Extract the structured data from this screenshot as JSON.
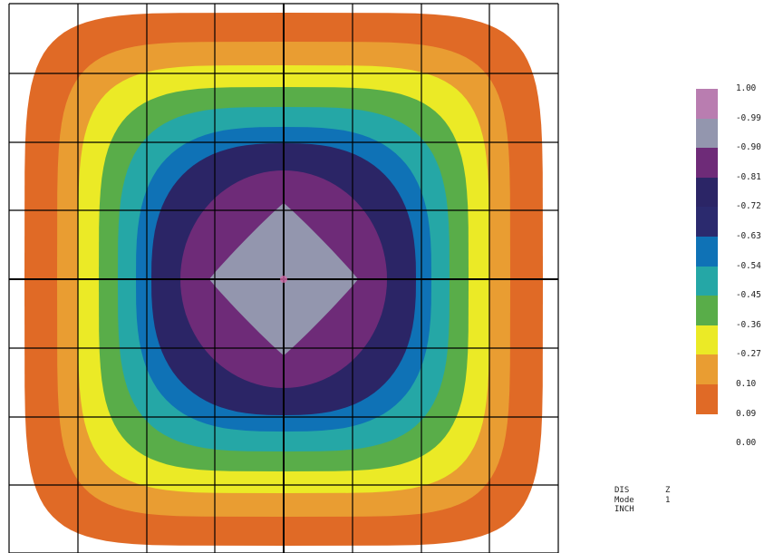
{
  "legend": {
    "labels": [
      "1.00",
      "-0.99",
      "-0.90",
      "-0.81",
      "-0.72",
      "-0.63",
      "-0.54",
      "-0.45",
      "-0.36",
      "-0.27",
      "0.10",
      "0.09",
      "0.00"
    ],
    "colors": [
      "#b97db0",
      "#9396ae",
      "#6e2b78",
      "#2b2566",
      "#2b2a6e",
      "#0f72b6",
      "#25a7a6",
      "#59ad49",
      "#ebea26",
      "#e99d32",
      "#e06a26"
    ]
  },
  "contour": {
    "fill_colors": [
      "#e06a26",
      "#e99d32",
      "#ebea26",
      "#59ad49",
      "#25a7a6",
      "#0f72b6",
      "#2b2566",
      "#6e2b78",
      "#9396ae"
    ],
    "grid_color": "#000000",
    "center_marker_color": "#d26aa8"
  },
  "info": {
    "rows": [
      {
        "key": "DIS",
        "value": "Z"
      },
      {
        "key": "Mode",
        "value": "1"
      },
      {
        "key": "INCH",
        "value": ""
      }
    ]
  }
}
